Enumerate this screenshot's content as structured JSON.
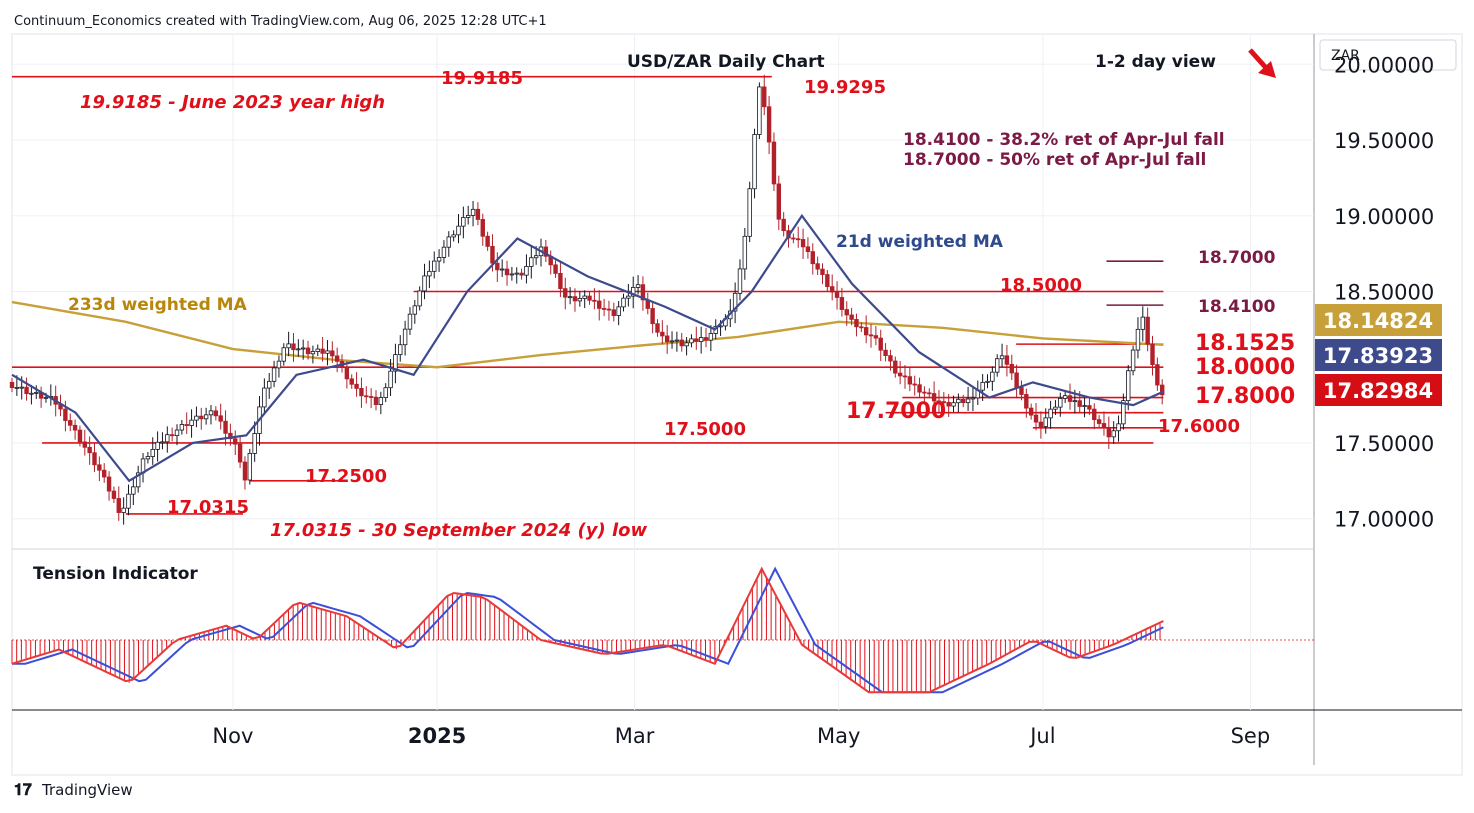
{
  "header": {
    "attribution": "Continuum_Economics created with TradingView.com, Aug 06, 2025 12:28 UTC+1",
    "footer_logo": "TradingView"
  },
  "chart_data": {
    "type": "candlestick",
    "title": "USD/ZAR Daily Chart",
    "view_label": "1-2 day view",
    "view_arrow": "down-right-arrow",
    "currency_label": "ZAR",
    "y_ticks": [
      "20.00000",
      "19.50000",
      "19.00000",
      "18.50000",
      "17.50000",
      "17.00000"
    ],
    "y_range": [
      16.8,
      20.2
    ],
    "x_ticks": [
      "Nov",
      "2025",
      "Mar",
      "May",
      "Jul",
      "Sep"
    ],
    "x_range": [
      "2024-08-27",
      "2025-09-20"
    ],
    "price_tags": [
      {
        "value": "18.14824",
        "color": "#c8a03a",
        "series": "233d weighted MA"
      },
      {
        "value": "17.83923",
        "color": "#3d4a8c",
        "series": "21d weighted MA"
      },
      {
        "value": "17.82984",
        "color": "#d50d14",
        "series": "USD/ZAR"
      }
    ],
    "levels": [
      {
        "value": 19.9185,
        "label": "19.9185"
      },
      {
        "value": 19.9295,
        "label": "19.9295"
      },
      {
        "value": 18.5,
        "label": "18.5000"
      },
      {
        "value": 18.1525,
        "label": "18.1525"
      },
      {
        "value": 18.0,
        "label": "18.0000"
      },
      {
        "value": 17.8,
        "label": "17.8000"
      },
      {
        "value": 17.7,
        "label": "17.7000"
      },
      {
        "value": 17.6,
        "label": "17.6000"
      },
      {
        "value": 17.5,
        "label": "17.5000"
      },
      {
        "value": 17.25,
        "label": "17.2500"
      },
      {
        "value": 17.0315,
        "label": "17.0315"
      },
      {
        "value": 18.41,
        "label": "18.4100"
      },
      {
        "value": 18.7,
        "label": "18.7000"
      }
    ],
    "annotations": [
      "19.9185 - June 2023 year high",
      "17.0315 - 30 September 2024 (y) low",
      "18.4100 - 38.2% ret of Apr-Jul fall",
      "18.7000 - 50% ret of Apr-Jul fall",
      "233d weighted MA",
      "21d weighted MA"
    ],
    "price_path": [
      [
        "2024-08-27",
        17.9
      ],
      [
        "2024-09-03",
        17.83
      ],
      [
        "2024-09-10",
        17.78
      ],
      [
        "2024-09-17",
        17.55
      ],
      [
        "2024-09-24",
        17.3
      ],
      [
        "2024-09-30",
        17.0315
      ],
      [
        "2024-10-07",
        17.4
      ],
      [
        "2024-10-14",
        17.55
      ],
      [
        "2024-10-21",
        17.65
      ],
      [
        "2024-10-28",
        17.7
      ],
      [
        "2024-11-04",
        17.45
      ],
      [
        "2024-11-06",
        17.25
      ],
      [
        "2024-11-11",
        17.8
      ],
      [
        "2024-11-18",
        18.15
      ],
      [
        "2024-11-25",
        18.1
      ],
      [
        "2024-12-02",
        18.1
      ],
      [
        "2024-12-09",
        17.85
      ],
      [
        "2024-12-16",
        17.75
      ],
      [
        "2024-12-23",
        18.2
      ],
      [
        "2024-12-30",
        18.6
      ],
      [
        "2025-01-06",
        18.85
      ],
      [
        "2025-01-13",
        19.05
      ],
      [
        "2025-01-20",
        18.65
      ],
      [
        "2025-01-27",
        18.6
      ],
      [
        "2025-02-03",
        18.8
      ],
      [
        "2025-02-10",
        18.45
      ],
      [
        "2025-02-17",
        18.45
      ],
      [
        "2025-02-24",
        18.35
      ],
      [
        "2025-03-03",
        18.55
      ],
      [
        "2025-03-10",
        18.2
      ],
      [
        "2025-03-17",
        18.15
      ],
      [
        "2025-03-24",
        18.2
      ],
      [
        "2025-03-31",
        18.35
      ],
      [
        "2025-04-04",
        18.75
      ],
      [
        "2025-04-09",
        19.9295
      ],
      [
        "2025-04-15",
        18.9
      ],
      [
        "2025-04-22",
        18.8
      ],
      [
        "2025-04-29",
        18.55
      ],
      [
        "2025-05-06",
        18.3
      ],
      [
        "2025-05-13",
        18.2
      ],
      [
        "2025-05-20",
        17.95
      ],
      [
        "2025-05-27",
        17.85
      ],
      [
        "2025-06-03",
        17.75
      ],
      [
        "2025-06-10",
        17.78
      ],
      [
        "2025-06-17",
        17.95
      ],
      [
        "2025-06-20",
        18.1
      ],
      [
        "2025-06-24",
        17.9
      ],
      [
        "2025-07-01",
        17.6
      ],
      [
        "2025-07-08",
        17.8
      ],
      [
        "2025-07-15",
        17.75
      ],
      [
        "2025-07-22",
        17.55
      ],
      [
        "2025-07-25",
        17.6
      ],
      [
        "2025-07-29",
        18.1
      ],
      [
        "2025-08-01",
        18.35
      ],
      [
        "2025-08-06",
        17.83
      ]
    ],
    "ma21_path": [
      [
        "2024-08-27",
        17.95
      ],
      [
        "2024-09-15",
        17.7
      ],
      [
        "2024-10-01",
        17.25
      ],
      [
        "2024-10-20",
        17.5
      ],
      [
        "2024-11-05",
        17.55
      ],
      [
        "2024-11-20",
        17.95
      ],
      [
        "2024-12-10",
        18.05
      ],
      [
        "2024-12-25",
        17.95
      ],
      [
        "2025-01-10",
        18.5
      ],
      [
        "2025-01-25",
        18.85
      ],
      [
        "2025-02-15",
        18.6
      ],
      [
        "2025-03-10",
        18.4
      ],
      [
        "2025-03-25",
        18.25
      ],
      [
        "2025-04-05",
        18.5
      ],
      [
        "2025-04-20",
        19.0
      ],
      [
        "2025-05-05",
        18.55
      ],
      [
        "2025-05-25",
        18.1
      ],
      [
        "2025-06-15",
        17.8
      ],
      [
        "2025-06-28",
        17.9
      ],
      [
        "2025-07-15",
        17.8
      ],
      [
        "2025-07-28",
        17.75
      ],
      [
        "2025-08-06",
        17.83923
      ]
    ],
    "ma233_path": [
      [
        "2024-08-27",
        18.43
      ],
      [
        "2024-09-30",
        18.3
      ],
      [
        "2024-11-01",
        18.12
      ],
      [
        "2024-12-01",
        18.05
      ],
      [
        "2025-01-01",
        18.0
      ],
      [
        "2025-02-01",
        18.08
      ],
      [
        "2025-03-01",
        18.14
      ],
      [
        "2025-04-01",
        18.2
      ],
      [
        "2025-05-01",
        18.3
      ],
      [
        "2025-06-01",
        18.26
      ],
      [
        "2025-07-01",
        18.19
      ],
      [
        "2025-08-06",
        18.14824
      ]
    ],
    "tension_indicator": {
      "label": "Tension Indicator",
      "range": [
        -1.0,
        1.0
      ],
      "values": [
        [
          "2024-08-27",
          -0.25
        ],
        [
          "2024-09-10",
          -0.1
        ],
        [
          "2024-10-01",
          -0.45
        ],
        [
          "2024-10-15",
          0.0
        ],
        [
          "2024-10-30",
          0.15
        ],
        [
          "2024-11-08",
          0.0
        ],
        [
          "2024-11-20",
          0.4
        ],
        [
          "2024-12-05",
          0.25
        ],
        [
          "2024-12-20",
          -0.1
        ],
        [
          "2025-01-05",
          0.5
        ],
        [
          "2025-01-15",
          0.45
        ],
        [
          "2025-02-01",
          0.0
        ],
        [
          "2025-02-20",
          -0.15
        ],
        [
          "2025-03-10",
          -0.05
        ],
        [
          "2025-03-25",
          -0.25
        ],
        [
          "2025-04-08",
          0.75
        ],
        [
          "2025-04-20",
          -0.05
        ],
        [
          "2025-05-10",
          -0.55
        ],
        [
          "2025-05-28",
          -0.55
        ],
        [
          "2025-06-15",
          -0.25
        ],
        [
          "2025-06-28",
          0.0
        ],
        [
          "2025-07-10",
          -0.2
        ],
        [
          "2025-07-22",
          -0.05
        ],
        [
          "2025-08-06",
          0.2
        ]
      ]
    }
  }
}
